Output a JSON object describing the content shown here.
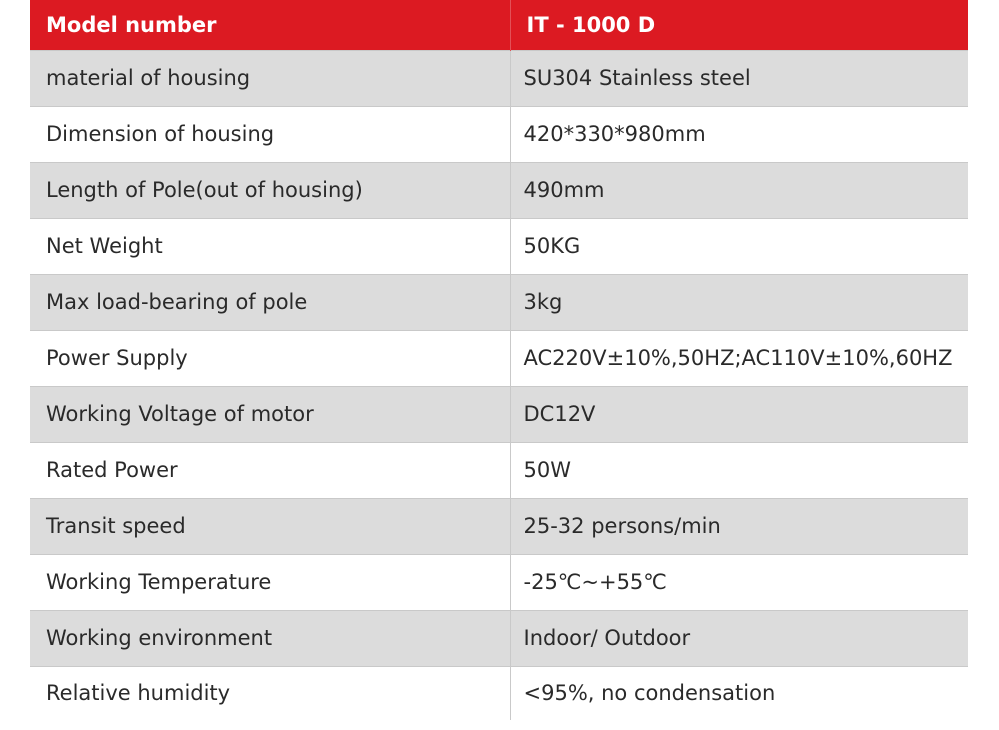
{
  "header": {
    "label": "Model number",
    "value": "IT - 1000 D"
  },
  "rows": [
    {
      "label": "material of housing",
      "value": "SU304 Stainless steel"
    },
    {
      "label": "Dimension of housing",
      "value": "420*330*980mm"
    },
    {
      "label": "Length of Pole(out of housing)",
      "value": "490mm"
    },
    {
      "label": "Net Weight",
      "value": "50KG"
    },
    {
      "label": "Max load-bearing of pole",
      "value": "3kg"
    },
    {
      "label": "Power Supply",
      "value": "AC220V±10%,50HZ;AC110V±10%,60HZ"
    },
    {
      "label": "Working Voltage of motor",
      "value": "DC12V"
    },
    {
      "label": "Rated Power",
      "value": "50W"
    },
    {
      "label": "Transit speed",
      "value": "25-32 persons/min"
    },
    {
      "label": "Working Temperature",
      "value": "-25℃~+55℃"
    },
    {
      "label": "Working environment",
      "value": "Indoor/ Outdoor"
    },
    {
      "label": "Relative humidity",
      "value": "<95%, no condensation"
    }
  ],
  "colors": {
    "header_bg": "#dc1a22",
    "header_text": "#ffffff",
    "row_shaded": "#dcdcdc",
    "row_plain": "#ffffff",
    "body_text": "#2a2a2a"
  }
}
